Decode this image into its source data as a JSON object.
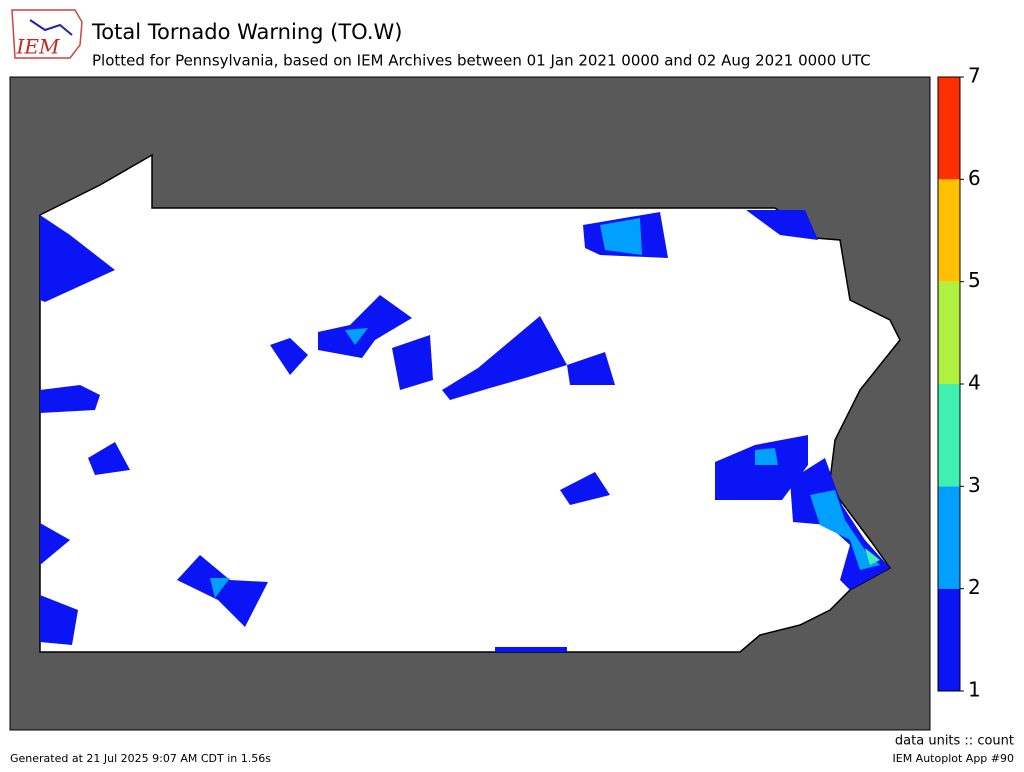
{
  "header": {
    "logo": "IEM",
    "title": "Total Tornado Warning (TO.W)",
    "subtitle": "Plotted for Pennsylvania, based on IEM Archives  between 01 Jan 2021 0000 and 02 Aug 2021 0000 UTC"
  },
  "colorbar": {
    "lim": [
      1,
      7
    ],
    "ticks": [
      1,
      2,
      3,
      4,
      5,
      6,
      7
    ],
    "colors": [
      "#0a14f5",
      "#00a0ff",
      "#40f0b0",
      "#b0f040",
      "#ffc000",
      "#ff3000"
    ],
    "units": "data units :: count"
  },
  "footer": {
    "generated": "Generated at 21 Jul 2025 9:07 AM CDT in 1.56s",
    "app": "IEM Autoplot App #90"
  }
}
